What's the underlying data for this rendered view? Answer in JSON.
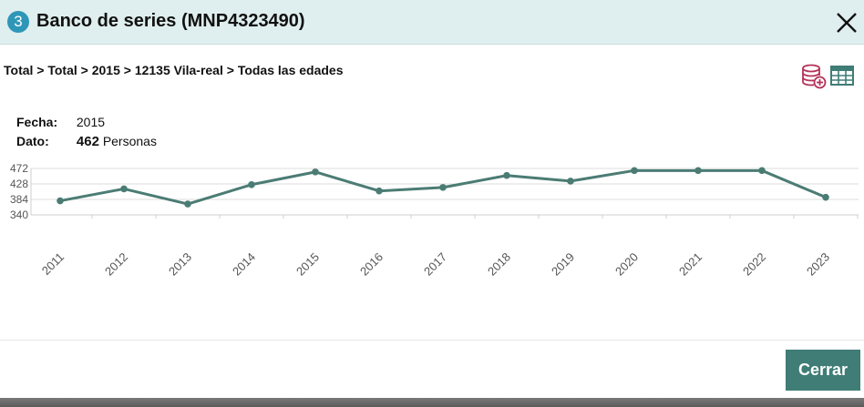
{
  "dialog": {
    "step_number": "3",
    "title": "Banco de series (MNP4323490)",
    "close_icon": "close-icon"
  },
  "breadcrumb": "Total > Total > 2015 > 12135 Vila-real > Todas las edades",
  "tools": {
    "icons": [
      "database-add-icon",
      "table-icon"
    ],
    "database_color": "#b5325a",
    "table_color": "#3f7d76"
  },
  "info": {
    "fecha_label": "Fecha:",
    "fecha_value": "2015",
    "dato_label": "Dato:",
    "dato_value": "462",
    "dato_unit": "Personas"
  },
  "chart_data": {
    "type": "line",
    "x": [
      "2011",
      "2012",
      "2013",
      "2014",
      "2015",
      "2016",
      "2017",
      "2018",
      "2019",
      "2020",
      "2021",
      "2022",
      "2023"
    ],
    "series": [
      {
        "values": [
          380,
          414,
          371,
          426,
          462,
          408,
          418,
          452,
          436,
          466,
          466,
          466,
          390
        ]
      }
    ],
    "ytick_labels": [
      "472",
      "428",
      "384",
      "340"
    ],
    "ylim": [
      340,
      472
    ],
    "grid": true,
    "line_color": "#4b7c74"
  },
  "footer": {
    "close_label": "Cerrar",
    "button_color": "#3f7d76"
  }
}
